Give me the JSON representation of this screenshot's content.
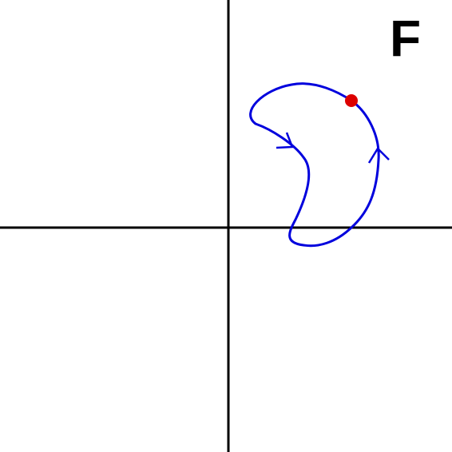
{
  "panel_label": "F",
  "colors": {
    "curve": "#0000dd",
    "point": "#dd0000",
    "axes": "#000000",
    "label": "#000000"
  },
  "icons": {
    "arrowheads": "chevron-arrow-icon",
    "point": "filled-circle-icon"
  }
}
